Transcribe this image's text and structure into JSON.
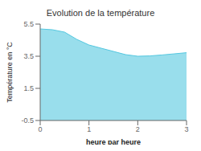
{
  "chart_data": {
    "type": "area",
    "title": "Evolution de la température",
    "xlabel": "heure par heure",
    "ylabel": "Température en °C",
    "x": [
      0,
      0.25,
      0.5,
      0.75,
      1.0,
      1.25,
      1.5,
      1.75,
      2.0,
      2.25,
      2.5,
      2.75,
      3.0
    ],
    "values": [
      5.2,
      5.15,
      5.0,
      4.55,
      4.2,
      4.0,
      3.8,
      3.6,
      3.5,
      3.52,
      3.58,
      3.65,
      3.72
    ],
    "color": "#55c8e0",
    "xlim": [
      0,
      3
    ],
    "ylim": [
      -0.5,
      5.5
    ],
    "xticks": [
      0,
      1,
      2,
      3
    ],
    "yticks": [
      -0.5,
      1.5,
      3.5,
      5.5
    ],
    "grid": false
  }
}
